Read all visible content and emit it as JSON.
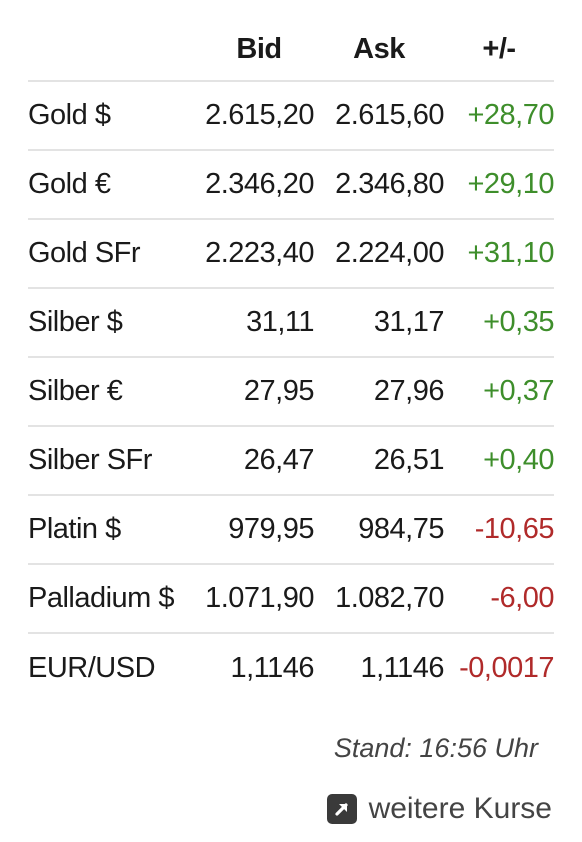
{
  "header": {
    "bid": "Bid",
    "ask": "Ask",
    "change": "+/-"
  },
  "rows": [
    {
      "name": "Gold $",
      "bid": "2.615,20",
      "ask": "2.615,60",
      "change": "+28,70"
    },
    {
      "name": "Gold €",
      "bid": "2.346,20",
      "ask": "2.346,80",
      "change": "+29,10"
    },
    {
      "name": "Gold SFr",
      "bid": "2.223,40",
      "ask": "2.224,00",
      "change": "+31,10"
    },
    {
      "name": "Silber $",
      "bid": "31,11",
      "ask": "31,17",
      "change": "+0,35"
    },
    {
      "name": "Silber €",
      "bid": "27,95",
      "ask": "27,96",
      "change": "+0,37"
    },
    {
      "name": "Silber SFr",
      "bid": "26,47",
      "ask": "26,51",
      "change": "+0,40"
    },
    {
      "name": "Platin $",
      "bid": "979,95",
      "ask": "984,75",
      "change": "-10,65"
    },
    {
      "name": "Palladium $",
      "bid": "1.071,90",
      "ask": "1.082,70",
      "change": "-6,00"
    },
    {
      "name": "EUR/USD",
      "bid": "1,1146",
      "ask": "1,1146",
      "change": "-0,0017"
    }
  ],
  "colors": {
    "positive": "#3e8e2b",
    "negative": "#b02a2a"
  },
  "footer": {
    "stand": "Stand: 16:56 Uhr",
    "more_label": "weitere Kurse",
    "more_icon": "external-link-icon"
  }
}
